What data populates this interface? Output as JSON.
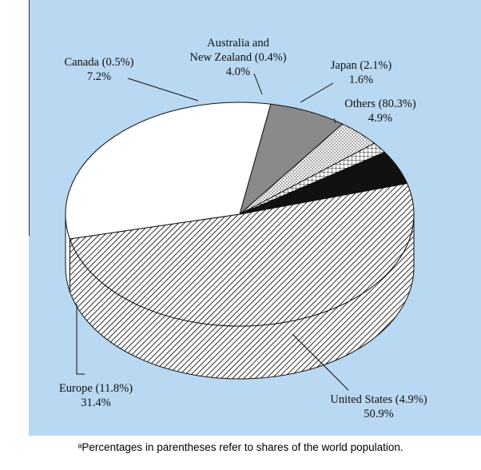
{
  "colors": {
    "background": "#b9d8f1"
  },
  "chart_data": {
    "type": "pie",
    "title": "",
    "slices": [
      {
        "label": "United States",
        "population_share": "4.9%",
        "value": 50.9,
        "value_label": "50.9%",
        "pattern": "dense-diagonal-hatch",
        "color": "#ffffff"
      },
      {
        "label": "Europe",
        "population_share": "11.8%",
        "value": 31.4,
        "value_label": "31.4%",
        "pattern": "solid",
        "color": "#ffffff"
      },
      {
        "label": "Canada",
        "population_share": "0.5%",
        "value": 7.2,
        "value_label": "7.2%",
        "pattern": "solid",
        "color": "#8a8a8a"
      },
      {
        "label": "Australia and New Zealand",
        "population_share": "0.4%",
        "value": 4.0,
        "value_label": "4.0%",
        "pattern": "dots",
        "color": "#ffffff"
      },
      {
        "label": "Japan",
        "population_share": "2.1%",
        "value": 1.6,
        "value_label": "1.6%",
        "pattern": "grid",
        "color": "#ffffff"
      },
      {
        "label": "Others",
        "population_share": "80.3%",
        "value": 4.9,
        "value_label": "4.9%",
        "pattern": "solid",
        "color": "#111111"
      }
    ],
    "labels": {
      "united_states": [
        "United States (4.9%)",
        "50.9%"
      ],
      "europe": [
        "Europe (11.8%)",
        "31.4%"
      ],
      "canada": [
        "Canada (0.5%)",
        "7.2%"
      ],
      "australia": [
        "Australia and",
        "New Zealand (0.4%)",
        "4.0%"
      ],
      "japan": [
        "Japan (2.1%)",
        "1.6%"
      ],
      "others": [
        "Others (80.3%)",
        "4.9%"
      ]
    },
    "footnote": "ᵃPercentages in parentheses refer to shares of the world population."
  }
}
